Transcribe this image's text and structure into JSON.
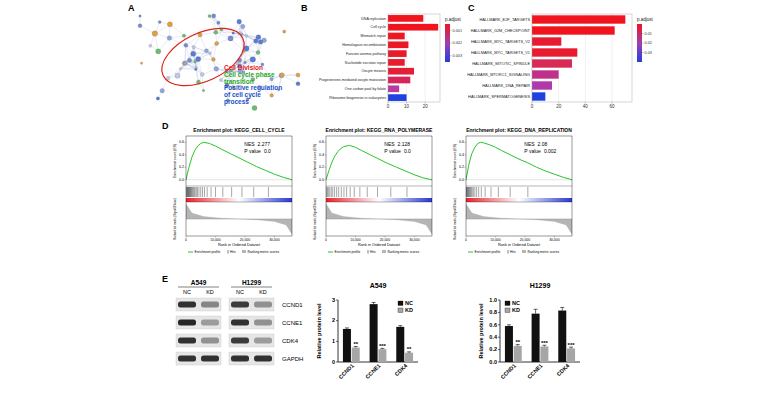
{
  "panel_labels": [
    "A",
    "B",
    "C",
    "D",
    "E"
  ],
  "network": {
    "labels": [
      {
        "lines": [
          "Cell Division"
        ],
        "color": "#e0201b"
      },
      {
        "lines": [
          "Cell cycle phase",
          "transition"
        ],
        "color": "#1fa81f"
      },
      {
        "lines": [
          "Positive regulation",
          "of cell cycle",
          "process"
        ],
        "color": "#2050c8"
      }
    ]
  },
  "blot": {
    "cell_lines": [
      "A549",
      "H1299"
    ],
    "conditions": [
      "NC",
      "KD",
      "NC",
      "KD"
    ],
    "proteins": [
      "CCND1",
      "CCNE1",
      "CDK4",
      "GAPDH"
    ]
  },
  "chart_data": [
    {
      "type": "bar",
      "orientation": "horizontal",
      "grid": true,
      "categories": [
        "DNA replication",
        "Cell cycle",
        "Mismatch repair",
        "Homologous recombination",
        "Fanconi anemia pathway",
        "Nucleotide excision repair",
        "Oocyte meiosis",
        "Progesterone-mediated oocyte maturation",
        "One carbon pool by folate",
        "Ribosome biogenesis in eukaryotes"
      ],
      "values": [
        19,
        27,
        9,
        11,
        10,
        9,
        14,
        12,
        6,
        10
      ],
      "colors": [
        "#f0141e",
        "#f0141e",
        "#ee1622",
        "#ec1826",
        "#ea1a2a",
        "#e81c2e",
        "#e41e36",
        "#d8245a",
        "#b83a9e",
        "#2040e0"
      ],
      "xlim": [
        0,
        28
      ],
      "xticks": [
        0,
        10,
        20
      ],
      "color_bar": {
        "title": "p.adjust",
        "range": [
          0.0005,
          0.0035
        ],
        "ticks": [
          0.001,
          0.002,
          0.003
        ]
      }
    },
    {
      "type": "bar",
      "orientation": "horizontal",
      "grid": true,
      "categories": [
        "HALLMARK_E2F_TARGETS",
        "HALLMARK_G2M_CHECKPOINT",
        "HALLMARK_MYC_TARGETS_V2",
        "HALLMARK_MYC_TARGETS_V1",
        "HALLMARK_MITOTIC_SPINDLE",
        "HALLMARK_MTORC1_SIGNALING",
        "HALLMARK_DNA_REPAIR",
        "HALLMARK_SPERMATOGENESIS"
      ],
      "values": [
        70,
        62,
        22,
        34,
        30,
        20,
        15,
        10
      ],
      "colors": [
        "#f0141e",
        "#f0141e",
        "#e81c30",
        "#e81c2e",
        "#d82a55",
        "#c0308a",
        "#b038a8",
        "#2040e0"
      ],
      "xlim": [
        0,
        75
      ],
      "xticks": [
        0,
        20,
        40,
        60
      ],
      "color_bar": {
        "title": "p.adjust",
        "range": [
          0,
          0.04
        ],
        "ticks": [
          0.01,
          0.02,
          0.03
        ]
      }
    },
    {
      "type": "line",
      "title": "Enrichment plot: KEGG_CELL_CYCLE",
      "y_label": "Enrichment score (ES)",
      "metric_label": "Ranked list metric (Signal2Noise)",
      "x_label": "Rank in Ordered Dataset",
      "nes_label": "NES",
      "nes": 2.277,
      "p_label": "P value",
      "p_value": {
        "value": 0,
        "label": "0.0"
      },
      "x": [
        0,
        1000,
        2000,
        3000,
        4000,
        5000,
        6000,
        8000,
        10000,
        12000,
        15000,
        18000,
        21000,
        24000,
        27000,
        30000,
        33000,
        36000
      ],
      "series": [
        {
          "name": "Enrichment profile",
          "color": "#29c42a",
          "values": [
            0,
            0.2,
            0.36,
            0.47,
            0.54,
            0.58,
            0.6,
            0.58,
            0.54,
            0.49,
            0.42,
            0.35,
            0.28,
            0.21,
            0.15,
            0.09,
            0.04,
            0
          ]
        }
      ],
      "hits": {
        "name": "Hits",
        "x": [
          120,
          300,
          450,
          600,
          800,
          950,
          1100,
          1300,
          1500,
          1700,
          1900,
          2200,
          2500,
          2800,
          3100,
          3500,
          3900,
          4400,
          5000,
          5600,
          6300,
          7200,
          8500,
          10000,
          12500,
          15500,
          19000,
          23000,
          28000
        ]
      },
      "ranking_metric": {
        "name": "Ranking metric scores",
        "x": [
          0,
          2000,
          6000,
          12000,
          18000,
          24000,
          30000,
          34000,
          36000
        ],
        "values": [
          0.9,
          0.35,
          0.15,
          0.05,
          0,
          -0.05,
          -0.15,
          -0.35,
          -0.9
        ]
      },
      "metric_ylim": [
        -1,
        1
      ],
      "xlim": [
        0,
        36000
      ],
      "xticks": [
        0,
        {
          "value": 10000,
          "label": "10,000"
        },
        {
          "value": 20000,
          "label": "20,000"
        },
        {
          "value": 30000,
          "label": "30,000"
        }
      ],
      "ylim": [
        -0.1,
        0.7
      ],
      "yticks": [
        {
          "value": 0,
          "label": "0.0"
        },
        0.2,
        0.4,
        0.6
      ]
    },
    {
      "type": "line",
      "title": "Enrichment plot: KEGG_RNA_POLYMERASE",
      "y_label": "Enrichment score (ES)",
      "metric_label": "Ranked list metric (Signal2Noise)",
      "x_label": "Rank in Ordered Dataset",
      "nes_label": "NES",
      "nes": 2.128,
      "p_label": "P value",
      "p_value": {
        "value": 0,
        "label": "0.0"
      },
      "x": [
        0,
        1000,
        2000,
        3000,
        4000,
        5000,
        6000,
        8000,
        10000,
        12000,
        15000,
        18000,
        21000,
        24000,
        27000,
        30000,
        33000,
        36000
      ],
      "series": [
        {
          "name": "Enrichment profile",
          "color": "#29c42a",
          "values": [
            0,
            0.15,
            0.28,
            0.38,
            0.45,
            0.5,
            0.53,
            0.55,
            0.52,
            0.47,
            0.4,
            0.33,
            0.26,
            0.2,
            0.14,
            0.08,
            0.03,
            0
          ]
        }
      ],
      "hits": {
        "name": "Hits",
        "x": [
          200,
          500,
          900,
          1300,
          1800,
          2300,
          2900,
          3600,
          4300,
          5200,
          6100,
          7000,
          8200,
          9600,
          11500,
          14000,
          17500,
          22000,
          27500
        ]
      },
      "ranking_metric": {
        "name": "Ranking metric scores",
        "x": [
          0,
          2000,
          6000,
          12000,
          18000,
          24000,
          30000,
          34000,
          36000
        ],
        "values": [
          0.9,
          0.35,
          0.15,
          0.05,
          0,
          -0.05,
          -0.15,
          -0.35,
          -0.9
        ]
      },
      "metric_ylim": [
        -1,
        1
      ],
      "xlim": [
        0,
        36000
      ],
      "xticks": [
        0,
        {
          "value": 10000,
          "label": "10,000"
        },
        {
          "value": 20000,
          "label": "20,000"
        },
        {
          "value": 30000,
          "label": "30,000"
        }
      ],
      "ylim": [
        -0.1,
        0.7
      ],
      "yticks": [
        {
          "value": 0,
          "label": "0.0"
        },
        0.2,
        0.4,
        0.6
      ]
    },
    {
      "type": "line",
      "title": "Enrichment plot: KEGG_DNA_REPLICATION",
      "y_label": "Enrichment score (ES)",
      "metric_label": "Ranked list metric (Signal2Noise)",
      "x_label": "Rank in Ordered Dataset",
      "nes_label": "NES",
      "nes": 2.08,
      "p_label": "P value",
      "p_value": {
        "value": 0.002,
        "label": "0.002"
      },
      "x": [
        0,
        1000,
        2000,
        3000,
        4000,
        5000,
        6000,
        8000,
        10000,
        12000,
        15000,
        18000,
        21000,
        24000,
        27000,
        30000,
        33000,
        36000
      ],
      "series": [
        {
          "name": "Enrichment profile",
          "color": "#29c42a",
          "values": [
            0,
            0.25,
            0.42,
            0.52,
            0.58,
            0.6,
            0.59,
            0.56,
            0.52,
            0.47,
            0.4,
            0.33,
            0.27,
            0.2,
            0.14,
            0.09,
            0.04,
            0
          ]
        }
      ],
      "hits": {
        "name": "Hits",
        "x": [
          100,
          250,
          400,
          600,
          800,
          1000,
          1250,
          1500,
          1800,
          2100,
          2500,
          3000,
          3600,
          4300,
          5200,
          6500,
          8500,
          11000,
          15000,
          21000
        ]
      },
      "ranking_metric": {
        "name": "Ranking metric scores",
        "x": [
          0,
          2000,
          6000,
          12000,
          18000,
          24000,
          30000,
          34000,
          36000
        ],
        "values": [
          0.9,
          0.35,
          0.15,
          0.05,
          0,
          -0.05,
          -0.15,
          -0.35,
          -0.9
        ]
      },
      "metric_ylim": [
        -1,
        1
      ],
      "xlim": [
        0,
        36000
      ],
      "xticks": [
        0,
        {
          "value": 10000,
          "label": "10,000"
        },
        {
          "value": 20000,
          "label": "20,000"
        },
        {
          "value": 30000,
          "label": "30,000"
        }
      ],
      "ylim": [
        -0.1,
        0.7
      ],
      "yticks": [
        {
          "value": 0,
          "label": "0.0"
        },
        0.2,
        0.4,
        0.6
      ]
    },
    {
      "type": "bar",
      "title": "A549",
      "y_label": "Relative protein level",
      "legend": "top-right",
      "categories": [
        "CCND1",
        "CCNE1",
        "CDK4"
      ],
      "series": [
        {
          "name": "NC",
          "color": "#111111",
          "values": [
            1.6,
            2.8,
            1.7
          ],
          "errors": [
            0.05,
            0.08,
            0.06
          ]
        },
        {
          "name": "KD",
          "color": "#a6a6a6",
          "values": [
            0.7,
            0.62,
            0.45
          ],
          "errors": [
            0.05,
            0.04,
            0.04
          ]
        }
      ],
      "significance": [
        "**",
        "***",
        "**"
      ],
      "ylim": [
        0,
        3
      ],
      "yticks": [
        0,
        1,
        2,
        3
      ]
    },
    {
      "type": "bar",
      "title": "H1299",
      "y_label": "Relative protein level",
      "legend": "top-left",
      "categories": [
        "CCND1",
        "CCNE1",
        "CDK4"
      ],
      "series": [
        {
          "name": "NC",
          "color": "#111111",
          "values": [
            0.58,
            0.78,
            0.83
          ],
          "errors": [
            0.02,
            0.07,
            0.05
          ]
        },
        {
          "name": "KD",
          "color": "#a6a6a6",
          "values": [
            0.26,
            0.25,
            0.22
          ],
          "errors": [
            0.02,
            0.02,
            0.02
          ]
        }
      ],
      "significance": [
        "**",
        "***",
        "***"
      ],
      "ylim": [
        0,
        1
      ],
      "yticks": [
        {
          "value": 0,
          "label": "0.0"
        },
        0.2,
        0.4,
        0.6,
        0.8,
        {
          "value": 1,
          "label": "1.0"
        }
      ]
    }
  ]
}
